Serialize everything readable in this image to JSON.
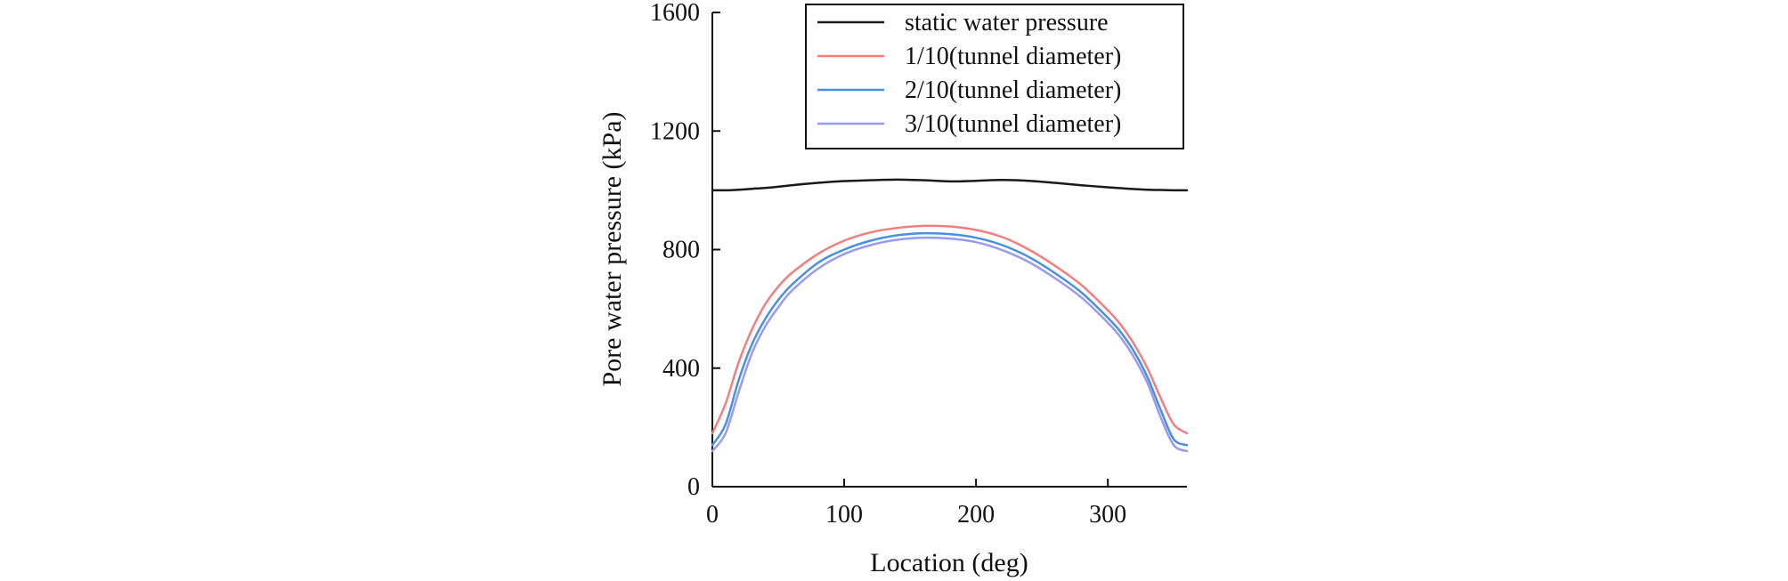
{
  "chart_data": {
    "type": "line",
    "title": "",
    "xlabel": "Location (deg)",
    "ylabel": "Pore water pressure (kPa)",
    "xlim": [
      0,
      360
    ],
    "ylim": [
      0,
      1600
    ],
    "xticks": [
      0,
      100,
      200,
      300
    ],
    "yticks": [
      0,
      400,
      800,
      1200,
      1600
    ],
    "grid": false,
    "legend_position": "top-right",
    "x": [
      0,
      10,
      20,
      30,
      40,
      50,
      60,
      80,
      100,
      120,
      140,
      160,
      180,
      200,
      220,
      240,
      260,
      280,
      300,
      310,
      320,
      330,
      340,
      350,
      360
    ],
    "series": [
      {
        "name": "static water pressure",
        "color": "#1a1a1a",
        "values": [
          1000,
          1000,
          1002,
          1005,
          1008,
          1012,
          1017,
          1025,
          1031,
          1034,
          1036,
          1034,
          1030,
          1032,
          1035,
          1032,
          1025,
          1017,
          1010,
          1007,
          1004,
          1002,
          1001,
          1000,
          1000
        ]
      },
      {
        "name": "1/10(tunnel diameter)",
        "color": "#f08080",
        "values": [
          180,
          280,
          420,
          530,
          615,
          675,
          720,
          785,
          830,
          858,
          873,
          880,
          878,
          866,
          842,
          800,
          745,
          680,
          595,
          545,
          480,
          400,
          300,
          210,
          180
        ]
      },
      {
        "name": "2/10(tunnel diameter)",
        "color": "#4a90e2",
        "values": [
          140,
          210,
          360,
          480,
          565,
          630,
          680,
          755,
          800,
          830,
          848,
          855,
          852,
          840,
          815,
          775,
          720,
          655,
          570,
          520,
          455,
          370,
          260,
          160,
          140
        ]
      },
      {
        "name": "3/10(tunnel diameter)",
        "color": "#9a9af0",
        "values": [
          120,
          180,
          320,
          450,
          540,
          605,
          660,
          735,
          785,
          815,
          833,
          840,
          837,
          825,
          798,
          758,
          703,
          638,
          553,
          502,
          435,
          350,
          235,
          140,
          120
        ]
      }
    ]
  }
}
